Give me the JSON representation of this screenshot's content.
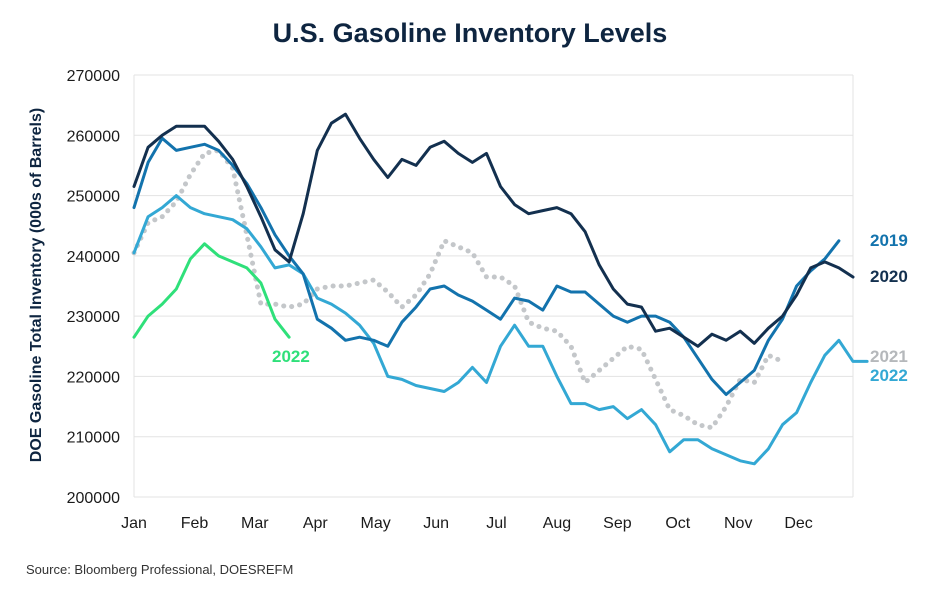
{
  "chart_data": {
    "type": "line",
    "title": "U.S. Gasoline Inventory Levels",
    "xlabel": "",
    "ylabel": "DOE Gasoline Total Inventory (000s of Barrels)",
    "ylim": [
      200000,
      270000
    ],
    "yticks": [
      "200000",
      "210000",
      "220000",
      "230000",
      "240000",
      "250000",
      "260000",
      "270000"
    ],
    "xlim": [
      0,
      51
    ],
    "month_labels": [
      "Jan",
      "Feb",
      "Mar",
      "Apr",
      "May",
      "Jun",
      "Jul",
      "Aug",
      "Sep",
      "Oct",
      "Nov",
      "Dec"
    ],
    "month_positions": [
      0,
      4.29,
      8.57,
      12.86,
      17.14,
      21.43,
      25.71,
      30,
      34.29,
      38.57,
      42.86,
      47.14
    ],
    "grid": true,
    "series": [
      {
        "name": "2021",
        "color": "#c4c7ca",
        "dashed": true,
        "label": "2021",
        "values": [
          240500,
          245500,
          246500,
          249000,
          253500,
          257000,
          257500,
          254500,
          243500,
          232000,
          232000,
          231500,
          232000,
          234500,
          235000,
          235000,
          235500,
          236000,
          234000,
          231500,
          233500,
          237000,
          242500,
          241500,
          240500,
          236500,
          236500,
          235000,
          229000,
          228000,
          227500,
          225000,
          219000,
          221000,
          223000,
          225000,
          224500,
          219500,
          214500,
          213500,
          212000,
          211500,
          215000,
          219500,
          219000,
          223500,
          222500
        ]
      },
      {
        "name": "2022",
        "color": "#2fe07a",
        "dashed": false,
        "label": "2022",
        "values": [
          226500,
          230000,
          232000,
          234500,
          239500,
          242000,
          240000,
          239000,
          238000,
          235500,
          229500,
          226500
        ]
      },
      {
        "name": "2022",
        "color": "#33a8d4",
        "dashed": false,
        "label": "2022",
        "values": [
          240500,
          246500,
          248000,
          250000,
          248000,
          247000,
          246500,
          246000,
          244500,
          241500,
          238000,
          238500,
          237000,
          233000,
          232000,
          230500,
          228500,
          225500,
          220000,
          219500,
          218500,
          218000,
          217500,
          219000,
          221500,
          219000,
          225000,
          228500,
          225000,
          225000,
          220000,
          215500,
          215500,
          214500,
          215000,
          213000,
          214500,
          212000,
          207500,
          209500,
          209500,
          208000,
          207000,
          206000,
          205500,
          208000,
          212000,
          214000,
          219000,
          223500,
          226000,
          222500,
          222500
        ]
      },
      {
        "name": "2019",
        "color": "#1373ad",
        "dashed": false,
        "label": "2019",
        "values": [
          248000,
          255500,
          259500,
          257500,
          258000,
          258500,
          257500,
          255000,
          252000,
          248000,
          243500,
          240000,
          237000,
          229500,
          228000,
          226000,
          226500,
          226000,
          225000,
          229000,
          231500,
          234500,
          235000,
          233500,
          232500,
          231000,
          229500,
          233000,
          232500,
          231000,
          235000,
          234000,
          234000,
          232000,
          230000,
          229000,
          230000,
          230000,
          229000,
          226500,
          223000,
          219500,
          217000,
          219000,
          221000,
          226000,
          229500,
          235000,
          237500,
          239500,
          242500
        ]
      },
      {
        "name": "2020",
        "color": "#13304f",
        "dashed": false,
        "label": "2020",
        "values": [
          251500,
          258000,
          260000,
          261500,
          261500,
          261500,
          259000,
          256000,
          251500,
          246500,
          241000,
          239000,
          247000,
          257500,
          262000,
          263500,
          259500,
          256000,
          253000,
          256000,
          255000,
          258000,
          259000,
          257000,
          255500,
          257000,
          251500,
          248500,
          247000,
          247500,
          248000,
          247000,
          244000,
          238500,
          234500,
          232000,
          231500,
          227500,
          228000,
          226500,
          225000,
          227000,
          226000,
          227500,
          225500,
          228000,
          230000,
          233500,
          238000,
          239000,
          238000,
          236500
        ]
      }
    ]
  },
  "source": "Source: Bloomberg Professional, DOESREFM"
}
